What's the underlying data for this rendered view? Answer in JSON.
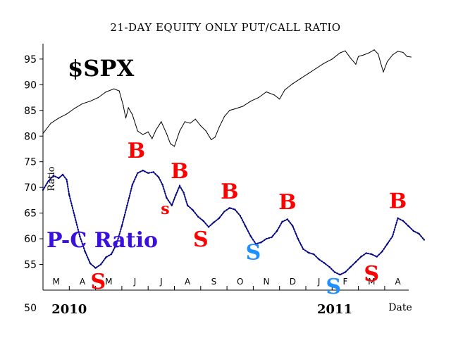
{
  "chart_data": {
    "type": "line",
    "title": "21-DAY EQUITY ONLY PUT/CALL RATIO",
    "ylabel": "Ratio",
    "xlabel": "Date",
    "ylim": [
      50,
      98
    ],
    "yticks": [
      "50",
      "55",
      "60",
      "65",
      "70",
      "75",
      "80",
      "85",
      "90",
      "95"
    ],
    "ytick_values": [
      50,
      55,
      60,
      65,
      70,
      75,
      80,
      85,
      90,
      95
    ],
    "month_labels": [
      "M",
      "A",
      "M",
      "J",
      "J",
      "A",
      "S",
      "O",
      "N",
      "D",
      "J",
      "F",
      "M",
      "A"
    ],
    "year_labels": [
      {
        "label": "2010",
        "x": 1.0
      },
      {
        "label": "2011",
        "x": 11.1
      }
    ],
    "series": [
      {
        "name": "$SPX",
        "color": "#000000",
        "style": "line",
        "points": [
          [
            0,
            80.5
          ],
          [
            0.3,
            82.5
          ],
          [
            0.6,
            83.5
          ],
          [
            0.9,
            84.3
          ],
          [
            1.2,
            85.4
          ],
          [
            1.5,
            86.3
          ],
          [
            1.8,
            86.8
          ],
          [
            2.1,
            87.5
          ],
          [
            2.4,
            88.6
          ],
          [
            2.7,
            89.2
          ],
          [
            2.9,
            88.8
          ],
          [
            3.05,
            86.0
          ],
          [
            3.15,
            83.5
          ],
          [
            3.25,
            85.5
          ],
          [
            3.4,
            84.2
          ],
          [
            3.6,
            81.0
          ],
          [
            3.8,
            80.3
          ],
          [
            4.0,
            80.8
          ],
          [
            4.15,
            79.5
          ],
          [
            4.3,
            81.2
          ],
          [
            4.5,
            82.8
          ],
          [
            4.7,
            80.5
          ],
          [
            4.85,
            78.5
          ],
          [
            5.0,
            78.0
          ],
          [
            5.2,
            81.0
          ],
          [
            5.4,
            82.8
          ],
          [
            5.6,
            82.5
          ],
          [
            5.8,
            83.3
          ],
          [
            6.0,
            82.0
          ],
          [
            6.2,
            81.0
          ],
          [
            6.4,
            79.3
          ],
          [
            6.55,
            79.8
          ],
          [
            6.7,
            81.7
          ],
          [
            6.9,
            83.8
          ],
          [
            7.1,
            85.0
          ],
          [
            7.3,
            85.3
          ],
          [
            7.6,
            85.8
          ],
          [
            7.9,
            86.8
          ],
          [
            8.2,
            87.5
          ],
          [
            8.5,
            88.6
          ],
          [
            8.8,
            88.0
          ],
          [
            9.0,
            87.2
          ],
          [
            9.2,
            89.0
          ],
          [
            9.5,
            90.2
          ],
          [
            9.8,
            91.2
          ],
          [
            10.1,
            92.2
          ],
          [
            10.4,
            93.2
          ],
          [
            10.7,
            94.2
          ],
          [
            11.0,
            95.0
          ],
          [
            11.3,
            96.2
          ],
          [
            11.5,
            96.6
          ],
          [
            11.7,
            95.2
          ],
          [
            11.9,
            94.0
          ],
          [
            12.0,
            95.5
          ],
          [
            12.2,
            95.8
          ],
          [
            12.4,
            96.2
          ],
          [
            12.6,
            96.8
          ],
          [
            12.75,
            96.0
          ],
          [
            12.85,
            94.2
          ],
          [
            12.95,
            92.5
          ],
          [
            13.1,
            94.5
          ],
          [
            13.3,
            95.8
          ],
          [
            13.5,
            96.5
          ],
          [
            13.7,
            96.3
          ],
          [
            13.85,
            95.5
          ],
          [
            14.0,
            95.4
          ]
        ]
      },
      {
        "name": "P-C Ratio",
        "color": "#000080",
        "style": "dotted",
        "points": [
          [
            0,
            69.5
          ],
          [
            0.2,
            71.2
          ],
          [
            0.4,
            72.3
          ],
          [
            0.6,
            71.8
          ],
          [
            0.75,
            72.5
          ],
          [
            0.9,
            71.5
          ],
          [
            1.0,
            68.5
          ],
          [
            1.2,
            64.5
          ],
          [
            1.4,
            60.5
          ],
          [
            1.6,
            57.5
          ],
          [
            1.8,
            55.2
          ],
          [
            2.0,
            54.3
          ],
          [
            2.2,
            55.0
          ],
          [
            2.4,
            56.4
          ],
          [
            2.6,
            57.0
          ],
          [
            2.8,
            59.0
          ],
          [
            3.0,
            62.5
          ],
          [
            3.2,
            66.5
          ],
          [
            3.4,
            70.5
          ],
          [
            3.6,
            72.8
          ],
          [
            3.8,
            73.3
          ],
          [
            4.0,
            72.8
          ],
          [
            4.2,
            73.0
          ],
          [
            4.4,
            72.0
          ],
          [
            4.55,
            70.5
          ],
          [
            4.7,
            68.0
          ],
          [
            4.9,
            66.5
          ],
          [
            5.05,
            68.5
          ],
          [
            5.2,
            70.3
          ],
          [
            5.35,
            69.0
          ],
          [
            5.5,
            66.5
          ],
          [
            5.7,
            65.6
          ],
          [
            5.9,
            64.3
          ],
          [
            6.1,
            63.5
          ],
          [
            6.3,
            62.3
          ],
          [
            6.5,
            63.2
          ],
          [
            6.7,
            64.0
          ],
          [
            6.9,
            65.3
          ],
          [
            7.1,
            66.0
          ],
          [
            7.3,
            65.7
          ],
          [
            7.5,
            64.5
          ],
          [
            7.7,
            62.5
          ],
          [
            7.9,
            60.5
          ],
          [
            8.1,
            59.0
          ],
          [
            8.3,
            59.3
          ],
          [
            8.5,
            60.0
          ],
          [
            8.7,
            60.3
          ],
          [
            8.9,
            61.5
          ],
          [
            9.1,
            63.3
          ],
          [
            9.3,
            63.8
          ],
          [
            9.5,
            62.5
          ],
          [
            9.7,
            60.0
          ],
          [
            9.9,
            58.0
          ],
          [
            10.1,
            57.3
          ],
          [
            10.3,
            57.0
          ],
          [
            10.5,
            56.0
          ],
          [
            10.7,
            55.3
          ],
          [
            10.9,
            54.5
          ],
          [
            11.1,
            53.5
          ],
          [
            11.3,
            53.0
          ],
          [
            11.5,
            53.5
          ],
          [
            11.7,
            54.5
          ],
          [
            11.9,
            55.5
          ],
          [
            12.1,
            56.5
          ],
          [
            12.3,
            57.2
          ],
          [
            12.5,
            57.0
          ],
          [
            12.7,
            56.5
          ],
          [
            12.9,
            57.5
          ],
          [
            13.1,
            59.0
          ],
          [
            13.3,
            60.5
          ],
          [
            13.5,
            64.0
          ],
          [
            13.7,
            63.5
          ],
          [
            13.9,
            62.5
          ],
          [
            14.1,
            61.5
          ],
          [
            14.3,
            61.0
          ],
          [
            14.5,
            59.8
          ]
        ]
      }
    ],
    "annotations": [
      {
        "text": "B",
        "x": 3.55,
        "y": 75.8,
        "color": "#ff0000",
        "size": "large"
      },
      {
        "text": "B",
        "x": 5.2,
        "y": 71.8,
        "color": "#ff0000",
        "size": "large"
      },
      {
        "text": "B",
        "x": 7.1,
        "y": 67.8,
        "color": "#ff0000",
        "size": "large"
      },
      {
        "text": "B",
        "x": 9.3,
        "y": 65.8,
        "color": "#ff0000",
        "size": "large"
      },
      {
        "text": "B",
        "x": 13.5,
        "y": 66.0,
        "color": "#ff0000",
        "size": "large"
      },
      {
        "text": "s",
        "x": 4.65,
        "y": 64.8,
        "color": "#ff0000",
        "size": "small"
      },
      {
        "text": "S",
        "x": 6.0,
        "y": 58.5,
        "color": "#ff0000",
        "size": "large"
      },
      {
        "text": "S",
        "x": 2.1,
        "y": 50.3,
        "color": "#ff0000",
        "size": "large"
      },
      {
        "text": "S",
        "x": 12.5,
        "y": 51.8,
        "color": "#ff0000",
        "size": "large"
      },
      {
        "text": "S",
        "x": 8.0,
        "y": 56.0,
        "color": "#1e90ff",
        "size": "large"
      },
      {
        "text": "S",
        "x": 11.05,
        "y": 49.3,
        "color": "#1e90ff",
        "size": "large"
      }
    ],
    "labels": {
      "spx": "$SPX",
      "pc_ratio": "P-C Ratio",
      "pc_ratio_color": "#3a10e0"
    }
  }
}
